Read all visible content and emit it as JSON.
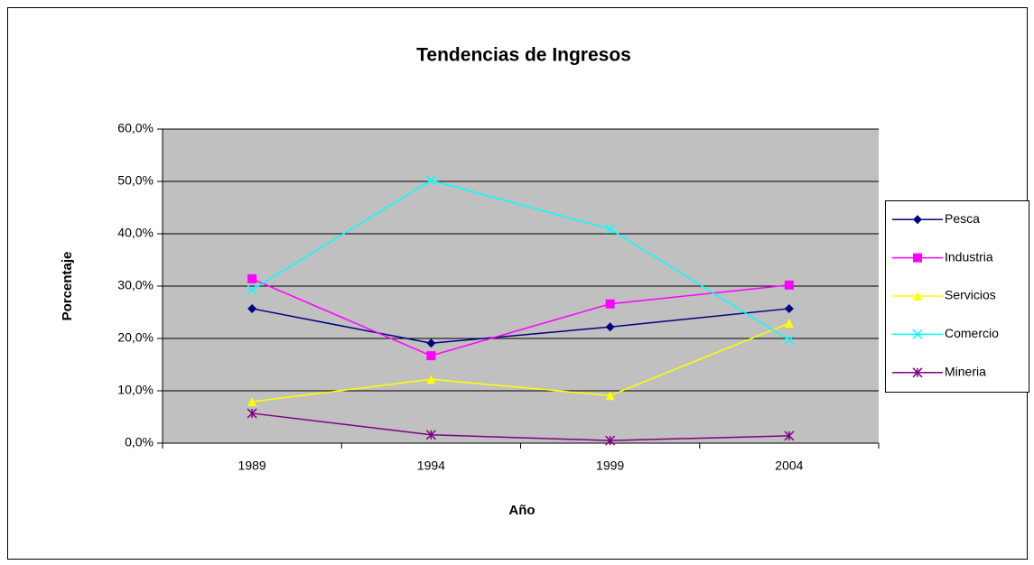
{
  "chart_data": {
    "type": "line",
    "title": "Tendencias de Ingresos",
    "x_label": "Año",
    "y_label": "Porcentaje",
    "categories": [
      "1989",
      "1994",
      "1999",
      "2004"
    ],
    "series": [
      {
        "name": "Pesca",
        "color": "#000080",
        "marker": "diamond",
        "values": [
          25.7,
          19.1,
          22.2,
          25.7
        ]
      },
      {
        "name": "Industria",
        "color": "#ff00ff",
        "marker": "square",
        "values": [
          31.4,
          16.7,
          26.6,
          30.2
        ]
      },
      {
        "name": "Servicios",
        "color": "#ffff00",
        "marker": "triangle",
        "values": [
          7.9,
          12.2,
          9.1,
          22.9
        ]
      },
      {
        "name": "Comercio",
        "color": "#00ffff",
        "marker": "x",
        "values": [
          29.3,
          50.2,
          40.9,
          19.7
        ]
      },
      {
        "name": "Mineria",
        "color": "#800080",
        "marker": "star",
        "values": [
          5.7,
          1.6,
          0.5,
          1.4
        ]
      }
    ],
    "ylim": [
      0,
      60
    ],
    "yticks": [
      {
        "value": 0,
        "label": "0,0%"
      },
      {
        "value": 10,
        "label": "10,0%"
      },
      {
        "value": 20,
        "label": "20,0%"
      },
      {
        "value": 30,
        "label": "30,0%"
      },
      {
        "value": 40,
        "label": "40,0%"
      },
      {
        "value": 50,
        "label": "50,0%"
      },
      {
        "value": 60,
        "label": "60,0%"
      }
    ],
    "grid": true,
    "plot_background": "#c0c0c0",
    "legend": "right"
  }
}
